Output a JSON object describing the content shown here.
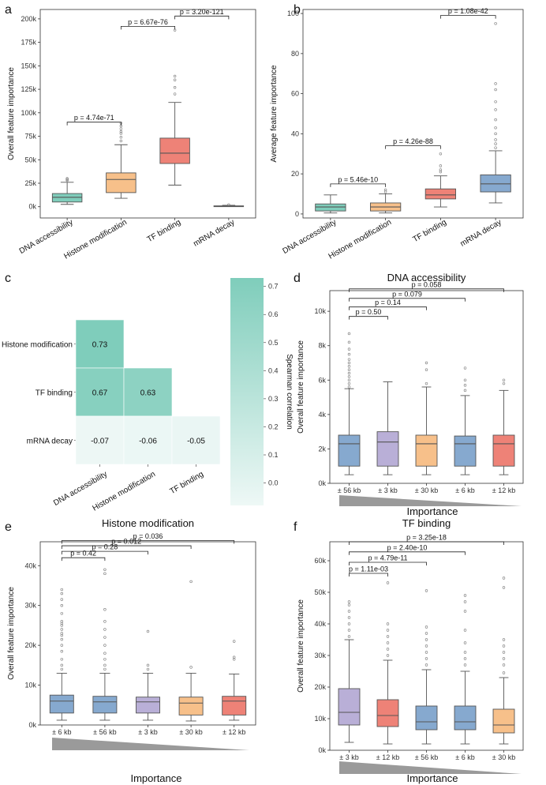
{
  "colors": {
    "DNA accessibility": "#7fcdbb",
    "Histone modification": "#f7c08a",
    "TF binding": "#ee8277",
    "mRNA decay": "#86a9cf",
    "± 56 kb": "#86a9cf",
    "± 3 kb": "#b9afd7",
    "± 30 kb": "#f7c08a",
    "± 6 kb": "#86a9cf",
    "± 12 kb": "#ee8277",
    "heat_hi": "#7fcdbb",
    "heat_lo": "#eef8f6"
  },
  "panels": {
    "a": {
      "letter": "a"
    },
    "b": {
      "letter": "b"
    },
    "c": {
      "letter": "c"
    },
    "d": {
      "letter": "d"
    },
    "e": {
      "letter": "e"
    },
    "f": {
      "letter": "f"
    }
  },
  "chart_data": [
    {
      "id": "a",
      "type": "box",
      "title": "",
      "xlabel": "",
      "ylabel": "Overall feature importance",
      "ylim": [
        -12000,
        210000
      ],
      "yticks": [
        0,
        25000,
        50000,
        75000,
        100000,
        125000,
        150000,
        175000,
        200000
      ],
      "ytick_labels": [
        "0k",
        "25k",
        "50k",
        "75k",
        "100k",
        "125k",
        "150k",
        "175k",
        "200k"
      ],
      "categories": [
        "DNA accessibility",
        "Histone modification",
        "TF binding",
        "mRNA decay"
      ],
      "boxes": [
        {
          "q1": 5000,
          "median": 10000,
          "q3": 14000,
          "whisker_low": 2500,
          "whisker_high": 26000,
          "outliers": [
            28000,
            29000,
            30000
          ]
        },
        {
          "q1": 15000,
          "median": 29000,
          "q3": 36000,
          "whisker_low": 9000,
          "whisker_high": 66000,
          "outliers": [
            70000,
            74000,
            78000,
            80000,
            83000,
            86000,
            89000
          ]
        },
        {
          "q1": 46000,
          "median": 57000,
          "q3": 73000,
          "whisker_low": 23000,
          "whisker_high": 111000,
          "outliers": [
            120000,
            127000,
            135000,
            139000,
            188000
          ]
        },
        {
          "q1": 300,
          "median": 600,
          "q3": 900,
          "whisker_low": 100,
          "whisker_high": 1500,
          "outliers": [
            2000
          ]
        }
      ],
      "comparisons": [
        {
          "from": 0,
          "to": 1,
          "label": "p = 4.74e-71",
          "level": 90000
        },
        {
          "from": 1,
          "to": 2,
          "label": "p = 6.67e-76",
          "level": 192000
        },
        {
          "from": 2,
          "to": 3,
          "label": "p = 3.20e-121",
          "level": 203000
        }
      ]
    },
    {
      "id": "b",
      "type": "box",
      "title": "",
      "xlabel": "",
      "ylabel": "Average feature importance",
      "ylim": [
        -2,
        102
      ],
      "yticks": [
        0,
        20,
        40,
        60,
        80,
        100
      ],
      "ytick_labels": [
        "0",
        "20",
        "40",
        "60",
        "80",
        "100"
      ],
      "categories": [
        "DNA accessibility",
        "Histone modification",
        "TF binding",
        "mRNA decay"
      ],
      "boxes": [
        {
          "q1": 1.5,
          "median": 3.5,
          "q3": 5,
          "whisker_low": 0.5,
          "whisker_high": 9.5,
          "outliers": []
        },
        {
          "q1": 1.5,
          "median": 3.5,
          "q3": 5.5,
          "whisker_low": 0.5,
          "whisker_high": 10,
          "outliers": [
            11,
            12
          ]
        },
        {
          "q1": 7.5,
          "median": 9.5,
          "q3": 12.5,
          "whisker_low": 3.5,
          "whisker_high": 19,
          "outliers": [
            21,
            22,
            24,
            30
          ]
        },
        {
          "q1": 11,
          "median": 15,
          "q3": 19.5,
          "whisker_low": 5.5,
          "whisker_high": 31.5,
          "outliers": [
            33,
            35,
            37,
            40,
            43,
            47,
            52,
            56,
            62,
            65,
            95
          ]
        }
      ],
      "comparisons": [
        {
          "from": 0,
          "to": 1,
          "label": "p = 5.46e-10",
          "level": 15
        },
        {
          "from": 1,
          "to": 2,
          "label": "p = 4.26e-88",
          "level": 34
        },
        {
          "from": 2,
          "to": 3,
          "label": "p = 1.08e-42",
          "level": 99
        }
      ]
    },
    {
      "id": "c",
      "type": "heatmap",
      "title": "",
      "rows": [
        "Histone modification",
        "TF binding",
        "mRNA decay"
      ],
      "cols": [
        "DNA accessibility",
        "Histone modification",
        "TF binding"
      ],
      "values": [
        [
          0.73,
          null,
          null
        ],
        [
          0.67,
          0.63,
          null
        ],
        [
          -0.07,
          -0.06,
          -0.05
        ]
      ],
      "labels": [
        [
          "0.73",
          "",
          ""
        ],
        [
          "0.67",
          "0.63",
          ""
        ],
        [
          "-0.07",
          "-0.06",
          "-0.05"
        ]
      ],
      "colorbar": {
        "label": "Spearman correlation",
        "vmin": -0.08,
        "vmax": 0.73,
        "ticks": [
          0.7,
          0.6,
          0.5,
          0.4,
          0.3,
          0.2,
          0.1,
          0.0
        ],
        "tick_labels": [
          "0.7",
          "0.6",
          "0.5",
          "0.4",
          "0.3",
          "0.2",
          "0.1",
          "0.0"
        ]
      }
    },
    {
      "id": "d",
      "type": "box",
      "title": "DNA accessibility",
      "xlabel": "Importance",
      "ylabel": "Overall feature importance",
      "ylim": [
        0,
        11200
      ],
      "yticks": [
        0,
        2000,
        4000,
        6000,
        8000,
        10000
      ],
      "ytick_labels": [
        "0k",
        "2k",
        "4k",
        "6k",
        "8k",
        "10k"
      ],
      "categories": [
        "± 56 kb",
        "± 3 kb",
        "± 30 kb",
        "± 6 kb",
        "± 12 kb"
      ],
      "boxes": [
        {
          "q1": 1000,
          "median": 2300,
          "q3": 2800,
          "whisker_low": 500,
          "whisker_high": 5500,
          "outliers": [
            5600,
            5800,
            6000,
            6200,
            6400,
            6600,
            6800,
            7000,
            7200,
            7500,
            7800,
            8200,
            8700
          ]
        },
        {
          "q1": 1000,
          "median": 2400,
          "q3": 3000,
          "whisker_low": 500,
          "whisker_high": 5900,
          "outliers": []
        },
        {
          "q1": 1000,
          "median": 2300,
          "q3": 2800,
          "whisker_low": 500,
          "whisker_high": 5600,
          "outliers": [
            5800,
            6600,
            7000
          ]
        },
        {
          "q1": 1000,
          "median": 2300,
          "q3": 2750,
          "whisker_low": 500,
          "whisker_high": 5100,
          "outliers": [
            5400,
            5700,
            6000,
            6700
          ]
        },
        {
          "q1": 1000,
          "median": 2300,
          "q3": 2800,
          "whisker_low": 500,
          "whisker_high": 5400,
          "outliers": [
            5800,
            6000
          ]
        }
      ],
      "comparisons": [
        {
          "from": 0,
          "to": 1,
          "label": "p = 0.50",
          "level": 9700
        },
        {
          "from": 0,
          "to": 2,
          "label": "p = 0.14",
          "level": 10250
        },
        {
          "from": 0,
          "to": 3,
          "label": "p = 0.079",
          "level": 10750
        },
        {
          "from": 0,
          "to": 4,
          "label": "p = 0.058",
          "level": 11300
        }
      ]
    },
    {
      "id": "e",
      "type": "box",
      "title": "Histone modification",
      "xlabel": "Importance",
      "ylabel": "Overall feature importance",
      "ylim": [
        0,
        46000
      ],
      "yticks": [
        0,
        10000,
        20000,
        30000,
        40000
      ],
      "ytick_labels": [
        "0k",
        "10k",
        "20k",
        "30k",
        "40k"
      ],
      "categories": [
        "± 6 kb",
        "± 56 kb",
        "± 3 kb",
        "± 30 kb",
        "± 12 kb"
      ],
      "boxes": [
        {
          "q1": 3000,
          "median": 6000,
          "q3": 7500,
          "whisker_low": 1200,
          "whisker_high": 13000,
          "outliers": [
            14000,
            15000,
            16500,
            18500,
            20000,
            21500,
            22500,
            23000,
            24000,
            25000,
            25500,
            26000,
            28000,
            30000,
            31500,
            33000,
            34000
          ]
        },
        {
          "q1": 3000,
          "median": 5800,
          "q3": 7200,
          "whisker_low": 1200,
          "whisker_high": 13000,
          "outliers": [
            14000,
            15000,
            16500,
            18000,
            20000,
            22000,
            24000,
            26000,
            29000,
            38000,
            39000
          ]
        },
        {
          "q1": 3000,
          "median": 5800,
          "q3": 7000,
          "whisker_low": 1200,
          "whisker_high": 13000,
          "outliers": [
            14000,
            15000,
            23500
          ]
        },
        {
          "q1": 2500,
          "median": 5500,
          "q3": 7000,
          "whisker_low": 1000,
          "whisker_high": 13000,
          "outliers": [
            14500,
            36000
          ]
        },
        {
          "q1": 2500,
          "median": 6000,
          "q3": 7200,
          "whisker_low": 1200,
          "whisker_high": 12800,
          "outliers": [
            16500,
            17000,
            21000
          ]
        }
      ],
      "comparisons": [
        {
          "from": 0,
          "to": 1,
          "label": "p = 0.42",
          "level": 42000
        },
        {
          "from": 0,
          "to": 2,
          "label": "p = 0.28",
          "level": 43600
        },
        {
          "from": 0,
          "to": 3,
          "label": "p = 0.012",
          "level": 45000
        },
        {
          "from": 0,
          "to": 4,
          "label": "p = 0.036",
          "level": 46300
        }
      ]
    },
    {
      "id": "f",
      "type": "box",
      "title": "TF binding",
      "xlabel": "Importance",
      "ylabel": "Overall feature importance",
      "ylim": [
        0,
        66000
      ],
      "yticks": [
        0,
        10000,
        20000,
        30000,
        40000,
        50000,
        60000
      ],
      "ytick_labels": [
        "0k",
        "10k",
        "20k",
        "30k",
        "40k",
        "50k",
        "60k"
      ],
      "categories": [
        "± 3 kb",
        "± 12 kb",
        "± 56 kb",
        "± 6 kb",
        "± 30 kb"
      ],
      "boxes": [
        {
          "q1": 8000,
          "median": 12000,
          "q3": 19500,
          "whisker_low": 2500,
          "whisker_high": 35000,
          "outliers": [
            36000,
            38000,
            40000,
            42000,
            44000,
            46000,
            47000
          ]
        },
        {
          "q1": 7500,
          "median": 11000,
          "q3": 16000,
          "whisker_low": 2000,
          "whisker_high": 28500,
          "outliers": [
            30000,
            32000,
            34000,
            36000,
            38000,
            40000,
            53000
          ]
        },
        {
          "q1": 6500,
          "median": 9000,
          "q3": 14000,
          "whisker_low": 2000,
          "whisker_high": 25500,
          "outliers": [
            27000,
            29000,
            31000,
            33000,
            35000,
            37000,
            39000,
            50500
          ]
        },
        {
          "q1": 6500,
          "median": 9000,
          "q3": 14000,
          "whisker_low": 2000,
          "whisker_high": 25000,
          "outliers": [
            27000,
            29000,
            31000,
            34000,
            38000,
            44000,
            47000,
            49000
          ]
        },
        {
          "q1": 5500,
          "median": 8000,
          "q3": 13000,
          "whisker_low": 2000,
          "whisker_high": 23000,
          "outliers": [
            24500,
            27000,
            29000,
            31000,
            33000,
            35000,
            51500,
            54500
          ]
        }
      ],
      "comparisons": [
        {
          "from": 0,
          "to": 1,
          "label": "p = 1.11e-03",
          "level": 56000
        },
        {
          "from": 0,
          "to": 2,
          "label": "p = 4.79e-11",
          "level": 59500
        },
        {
          "from": 0,
          "to": 3,
          "label": "p = 2.40e-10",
          "level": 62800
        },
        {
          "from": 0,
          "to": 4,
          "label": "p = 3.25e-18",
          "level": 66000
        }
      ]
    }
  ]
}
